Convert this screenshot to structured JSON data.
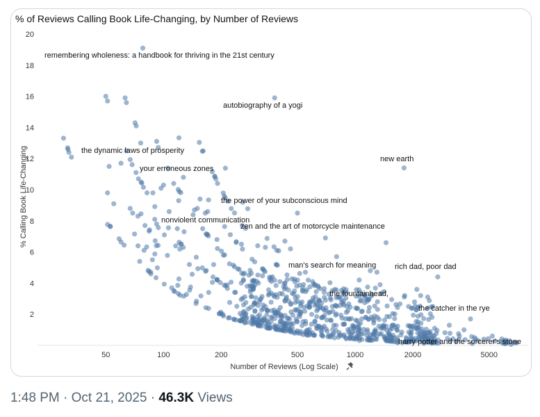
{
  "post": {
    "time": "1:48 PM",
    "separator": "·",
    "date": "Oct 21, 2025",
    "views_count": "46.3K",
    "views_label": "Views"
  },
  "chart_data": {
    "type": "scatter",
    "title": "% of Reviews Calling Book Life-Changing, by Number of Reviews",
    "xlabel": "Number of Reviews (Log Scale)",
    "xlabel_icon": "pin-icon",
    "ylabel": "% Calling Book Life-Changing",
    "xscale": "log",
    "xlim": [
      22,
      8000
    ],
    "ylim": [
      0,
      20
    ],
    "xticks": [
      50,
      100,
      200,
      500,
      1000,
      2000,
      5000
    ],
    "yticks": [
      2,
      4,
      6,
      8,
      10,
      12,
      14,
      16,
      18,
      20
    ],
    "point_color": "#4e79a7",
    "grid": false,
    "labeled_points": [
      {
        "label": "remembering wholeness: a handbook for thriving in the 21st century",
        "x": 78,
        "y": 19.1
      },
      {
        "label": "autobiography of a yogi",
        "x": 380,
        "y": 15.9
      },
      {
        "label": "the dynamic laws of prosperity",
        "x": 64,
        "y": 12.5
      },
      {
        "label": "new earth",
        "x": 1800,
        "y": 11.4
      },
      {
        "label": "your erroneous zones",
        "x": 100,
        "y": 10.3
      },
      {
        "label": "the power of your subconscious mind",
        "x": 500,
        "y": 8.5
      },
      {
        "label": "nonviolent communication",
        "x": 160,
        "y": 7.5
      },
      {
        "label": "zen and the art of motorcycle maintenance",
        "x": 700,
        "y": 6.9
      },
      {
        "label": "man's search for meaning",
        "x": 800,
        "y": 5.7
      },
      {
        "label": "rich dad, poor dad",
        "x": 2700,
        "y": 4.4
      },
      {
        "label": "the fountainhead,",
        "x": 900,
        "y": 3.4
      },
      {
        "label": "the catcher in the rye",
        "x": 4000,
        "y": 1.7
      },
      {
        "label": "harry potter and the sorcerer's stone",
        "x": 6000,
        "y": 0.3
      }
    ],
    "other_points_note": "Roughly 900 additional unlabeled books; the lower envelope follows y ≈ 400 / x (one life-changing review per book) with a dense band near 0–3% for 300–3000 reviews.",
    "lower_envelope_k": 400,
    "extra_points": [
      [
        50,
        16.0
      ],
      [
        51,
        15.7
      ],
      [
        63,
        15.9
      ],
      [
        64,
        15.6
      ],
      [
        71,
        14.3
      ],
      [
        72,
        14.1
      ],
      [
        52,
        11.5
      ],
      [
        60,
        11.7
      ],
      [
        51,
        9.8
      ],
      [
        55,
        9.1
      ],
      [
        67,
        8.8
      ],
      [
        69,
        8.5
      ],
      [
        76,
        13.0
      ],
      [
        74,
        10.7
      ],
      [
        82,
        9.8
      ],
      [
        88,
        9.8
      ],
      [
        97,
        10.1
      ],
      [
        113,
        10.4
      ],
      [
        127,
        10.8
      ],
      [
        120,
        9.3
      ],
      [
        155,
        9.4
      ],
      [
        150,
        8.8
      ],
      [
        145,
        8.7
      ],
      [
        170,
        8.6
      ],
      [
        165,
        8.5
      ],
      [
        107,
        8.6
      ],
      [
        90,
        8.1
      ],
      [
        80,
        7.7
      ],
      [
        92,
        7.8
      ],
      [
        101,
        7.1
      ],
      [
        118,
        7.5
      ],
      [
        128,
        7.3
      ],
      [
        190,
        6.8
      ],
      [
        255,
        6.5
      ],
      [
        310,
        6.4
      ],
      [
        340,
        6.3
      ],
      [
        430,
        6.7
      ],
      [
        460,
        6.2
      ],
      [
        1450,
        6.6
      ],
      [
        330,
        4.9
      ],
      [
        370,
        4.4
      ],
      [
        430,
        4.0
      ],
      [
        500,
        4.2
      ],
      [
        550,
        4.7
      ],
      [
        600,
        4.1
      ],
      [
        1200,
        4.8
      ],
      [
        1050,
        4.2
      ],
      [
        1300,
        4.7
      ],
      [
        1350,
        3.9
      ],
      [
        2100,
        3.6
      ],
      [
        1900,
        2.5
      ],
      [
        2600,
        1.1
      ],
      [
        3100,
        1.3
      ],
      [
        3500,
        0.6
      ],
      [
        3700,
        1.0
      ],
      [
        4200,
        0.5
      ],
      [
        4700,
        0.4
      ],
      [
        5200,
        0.6
      ],
      [
        6400,
        0.3
      ]
    ]
  }
}
